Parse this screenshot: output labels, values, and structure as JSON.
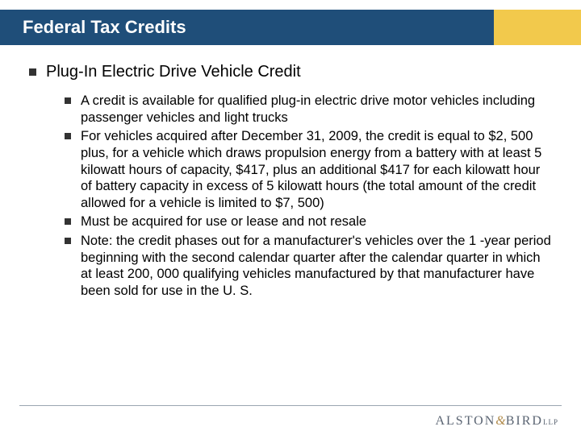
{
  "colors": {
    "header_bg": "#1f4e79",
    "header_accent": "#f2c94c",
    "header_text": "#ffffff",
    "bullet": "#333333",
    "body_text": "#000000",
    "footer_line": "#9aa5b1",
    "logo_text": "#5a6472",
    "logo_amp": "#b08a4a",
    "background": "#ffffff"
  },
  "typography": {
    "title_fontsize": 22,
    "heading_fontsize": 20,
    "body_fontsize": 16.5,
    "logo_fontsize": 16,
    "font_family": "Arial"
  },
  "header": {
    "title": "Federal Tax Credits"
  },
  "content": {
    "heading": "Plug-In Electric Drive Vehicle Credit",
    "items": [
      "A credit is available for qualified plug-in electric drive motor vehicles including passenger vehicles and light trucks",
      "For vehicles acquired after December 31, 2009, the credit is equal to $2, 500 plus, for a vehicle which draws propulsion energy from a battery with at least 5 kilowatt hours of capacity, $417, plus an additional $417 for each kilowatt hour of battery capacity in excess of 5 kilowatt hours (the total amount of the credit allowed for a vehicle is limited to $7, 500)",
      "Must be acquired for use or lease and not resale",
      "Note: the credit phases out for a manufacturer's vehicles over the 1 -year period beginning with the second calendar quarter after the calendar quarter in which at least 200, 000 qualifying vehicles manufactured by that manufacturer have been sold for use in the U. S."
    ]
  },
  "footer": {
    "logo_main": "ALSTON",
    "logo_amp": "&",
    "logo_second": "BIRD",
    "logo_suffix": "LLP"
  }
}
